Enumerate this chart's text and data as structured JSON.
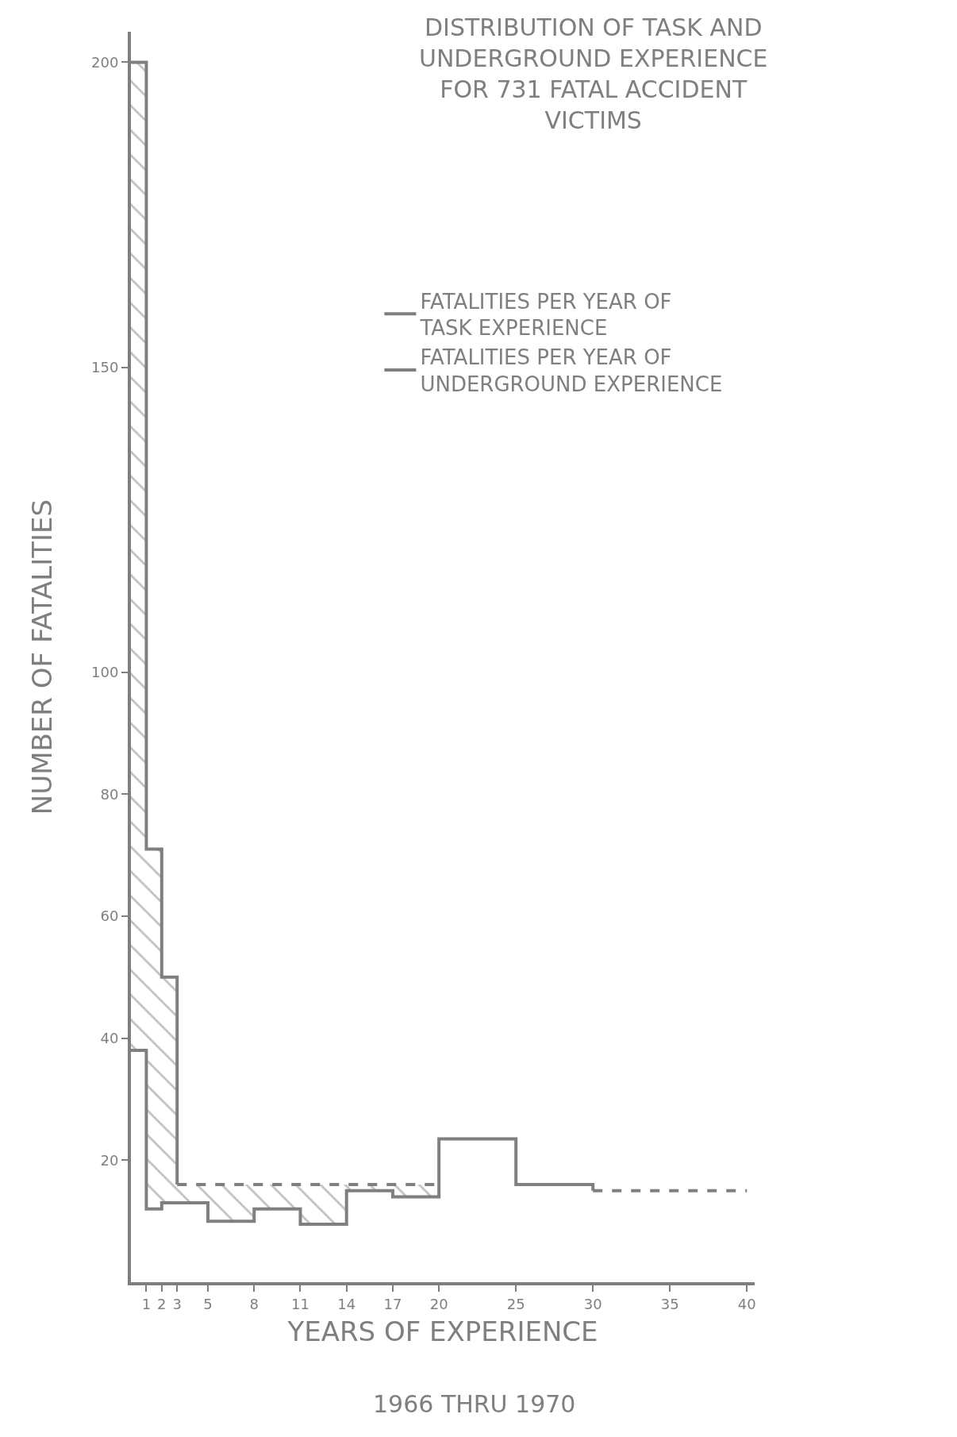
{
  "chart_data": {
    "type": "step",
    "title": "DISTRIBUTION OF TASK AND UNDERGROUND EXPERIENCE FOR 731 FATAL ACCIDENT VICTIMS",
    "xlabel": "YEARS OF EXPERIENCE",
    "ylabel": "NUMBER OF FATALITIES",
    "annotations": [
      "1966 THRU 1970"
    ],
    "series": [
      {
        "name": "FATALITIES PER YEAR OF TASK EXPERIENCE",
        "color": "#7f7f7f",
        "line_style": "solid",
        "x": [
          0,
          1,
          2,
          3
        ],
        "values": [
          200,
          71,
          50,
          16
        ],
        "lower": [
          38,
          12,
          13,
          13
        ],
        "upper": [
          200,
          71,
          50,
          16
        ]
      },
      {
        "color": "#7f7f7f",
        "line_style": "dashed",
        "x": [
          3,
          5,
          8,
          11,
          14,
          17,
          20
        ],
        "values": [
          16,
          16,
          16,
          16,
          16,
          16,
          16
        ],
        "lower": [
          13,
          10,
          12,
          9.5,
          15,
          14,
          14
        ],
        "upper": [
          16,
          16,
          16,
          16,
          16,
          16,
          16
        ]
      },
      {
        "name": "FATALITIES PER YEAR OF UNDERGROUND EXPERIENCE",
        "color": "#7f7f7f",
        "line_style": "solid",
        "x": [
          0,
          1,
          2,
          5,
          8,
          11,
          14,
          17,
          20,
          25,
          30
        ],
        "values": [
          38,
          12,
          13,
          10,
          12,
          9.5,
          15,
          14,
          23.5,
          16,
          15
        ]
      },
      {
        "color": "#7f7f7f",
        "line_style": "dashed",
        "x": [
          30,
          40
        ],
        "values": [
          15,
          15
        ]
      }
    ],
    "xlim": [
      0,
      40.5
    ],
    "xticks": [
      1,
      2,
      3,
      5,
      8,
      11,
      14,
      17,
      20,
      25,
      30,
      35,
      40
    ],
    "ylim": [
      0,
      205
    ],
    "yticks": [
      20,
      40,
      60,
      80,
      100,
      150,
      200
    ],
    "legend": "top right",
    "marker": "none"
  }
}
